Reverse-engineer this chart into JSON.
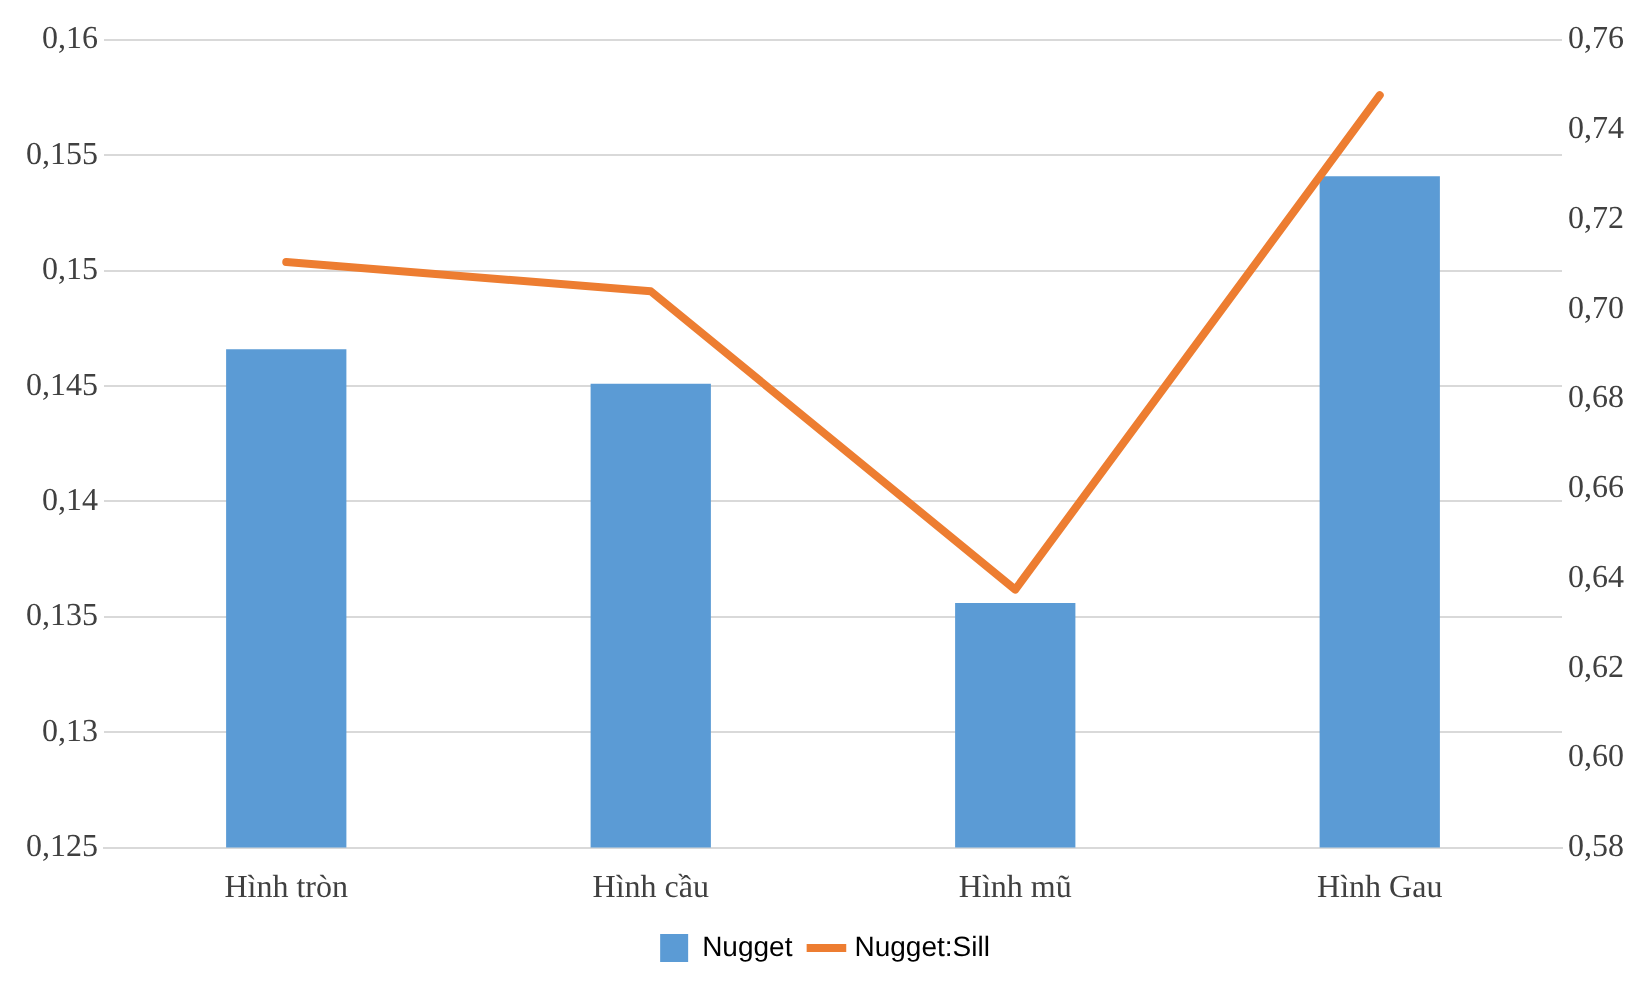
{
  "chart_data": {
    "type": "bar",
    "categories": [
      "Hình tròn",
      "Hình cầu",
      "Hình mũ",
      "Hình Gau"
    ],
    "series": [
      {
        "name": "Nugget",
        "color": "#5b9bd5",
        "values": [
          0.1466,
          0.1451,
          0.1356,
          0.1541
        ]
      },
      {
        "name": "Nugget:Sill",
        "type": "line",
        "axis": "y2",
        "color": "#ed7d31",
        "values": [
          0.7105,
          0.704,
          0.6375,
          0.7477
        ]
      }
    ],
    "ylim": [
      0.125,
      0.16
    ],
    "yticks": [
      {
        "value": 0.125,
        "label": "0,125"
      },
      {
        "value": 0.13,
        "label": "0,13"
      },
      {
        "value": 0.135,
        "label": "0,135"
      },
      {
        "value": 0.14,
        "label": "0,14"
      },
      {
        "value": 0.145,
        "label": "0,145"
      },
      {
        "value": 0.15,
        "label": "0,15"
      },
      {
        "value": 0.155,
        "label": "0,155"
      },
      {
        "value": 0.16,
        "label": "0,16"
      }
    ],
    "y2lim": [
      0.58,
      0.76
    ],
    "y2ticks": [
      {
        "value": 0.58,
        "label": "0,58"
      },
      {
        "value": 0.6,
        "label": "0,60"
      },
      {
        "value": 0.62,
        "label": "0,62"
      },
      {
        "value": 0.64,
        "label": "0,64"
      },
      {
        "value": 0.66,
        "label": "0,66"
      },
      {
        "value": 0.68,
        "label": "0,68"
      },
      {
        "value": 0.7,
        "label": "0,70"
      },
      {
        "value": 0.72,
        "label": "0,72"
      },
      {
        "value": 0.74,
        "label": "0,74"
      },
      {
        "value": 0.76,
        "label": "0,76"
      }
    ],
    "grid": "y",
    "legend": "bottom",
    "marker": "none",
    "line_style": "solid"
  }
}
